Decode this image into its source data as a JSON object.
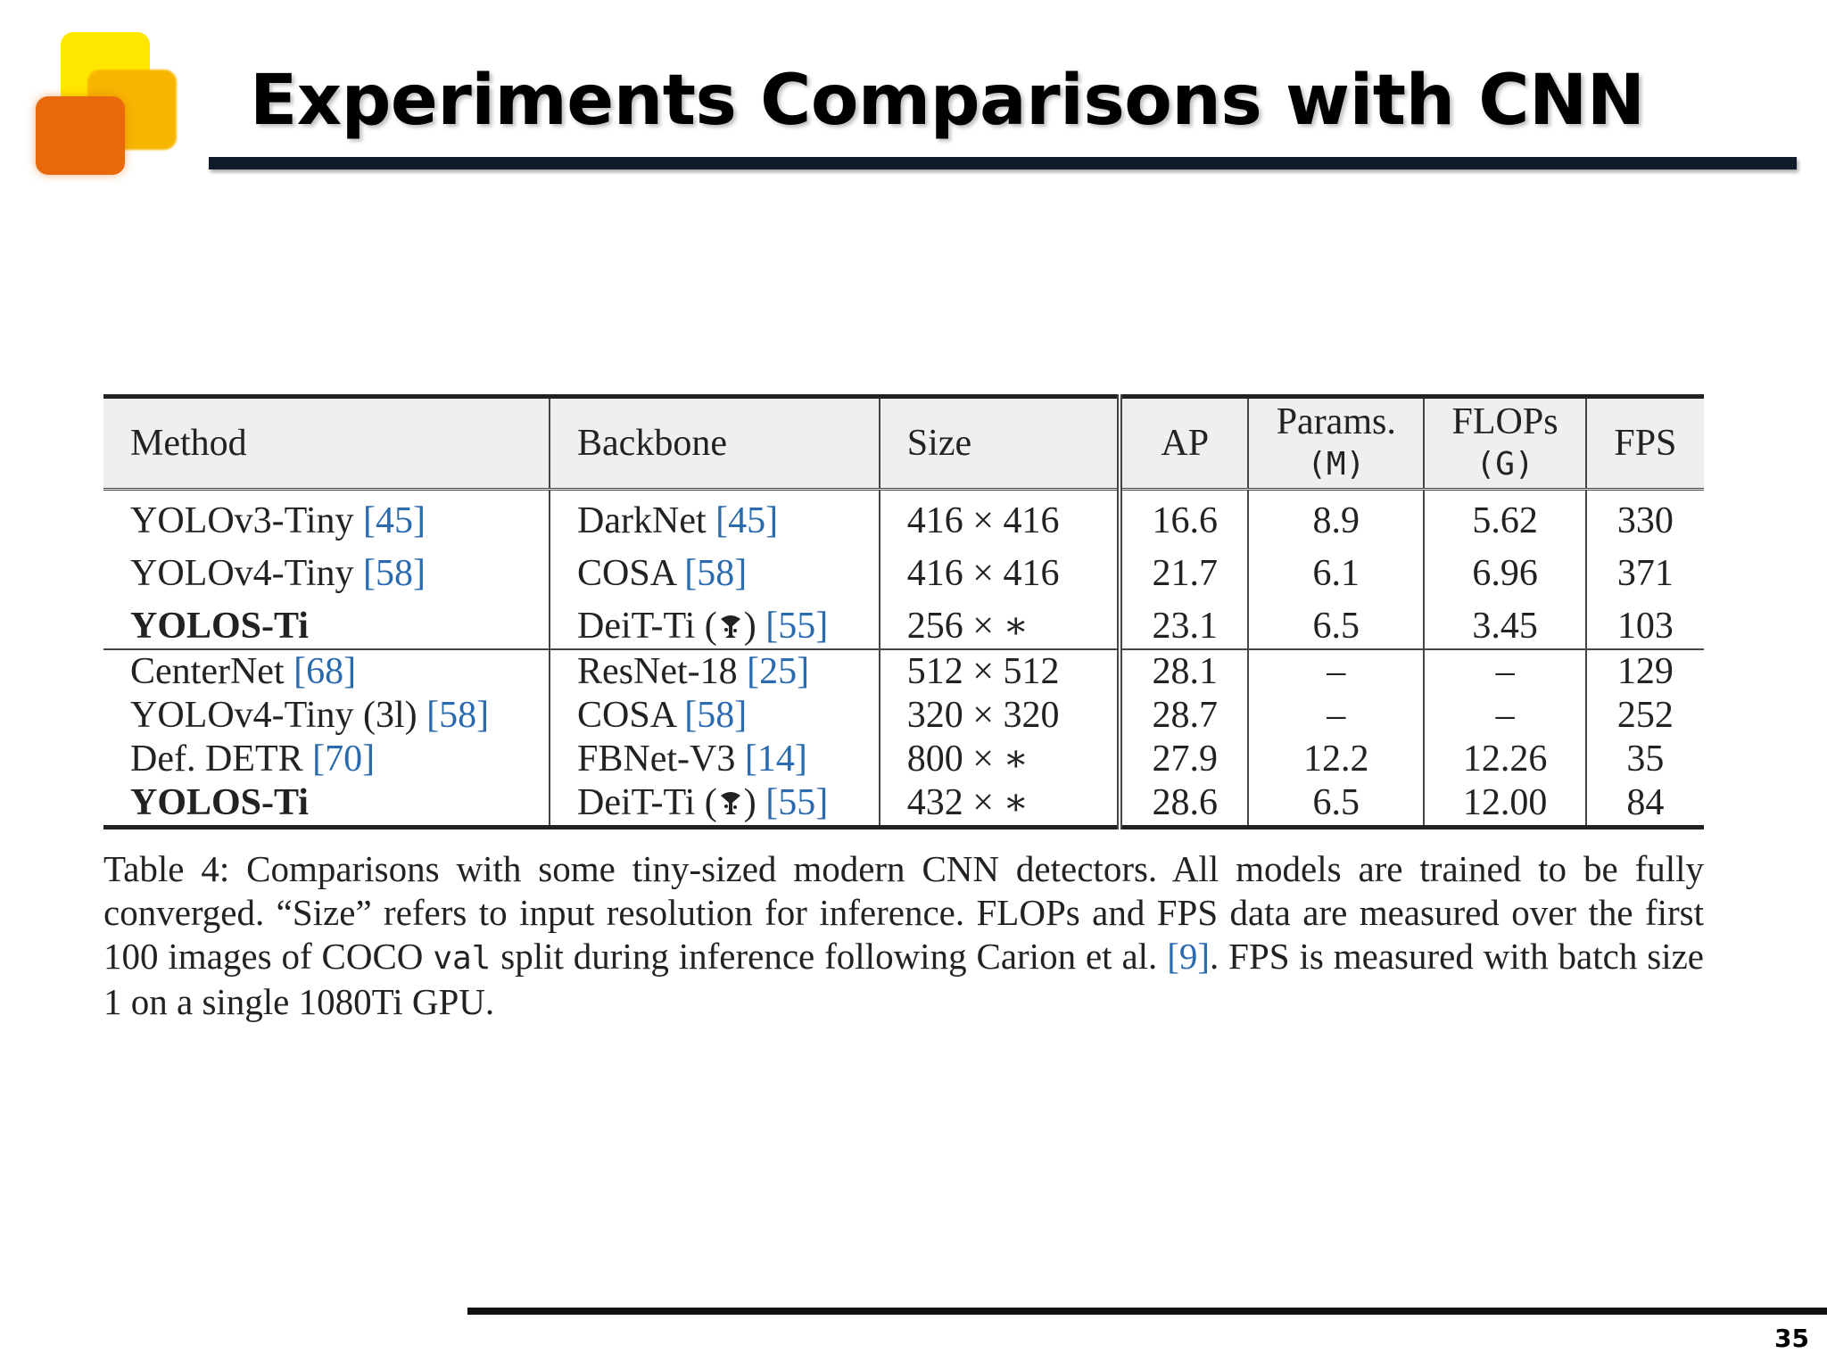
{
  "slide": {
    "title": "Experiments Comparisons with CNN",
    "page_number": "35"
  },
  "table": {
    "headers": {
      "method": "Method",
      "backbone": "Backbone",
      "size": "Size",
      "ap": "AP",
      "params_line1": "Params.",
      "params_line2": "(M)",
      "flops_line1": "FLOPs",
      "flops_line2": "(G)",
      "fps": "FPS"
    },
    "rows": [
      {
        "method": "YOLOv3-Tiny",
        "method_ref": "[45]",
        "backbone": "DarkNet",
        "backbone_ref": "[45]",
        "size": "416 × 416",
        "ap": "16.6",
        "params": "8.9",
        "flops": "5.62",
        "fps": "330"
      },
      {
        "method": "YOLOv4-Tiny",
        "method_ref": "[58]",
        "backbone": "COSA",
        "backbone_ref": "[58]",
        "size": "416 × 416",
        "ap": "21.7",
        "params": "6.1",
        "flops": "6.96",
        "fps": "371"
      },
      {
        "method": "YOLOS-Ti",
        "method_ref": "",
        "backbone": "DeiT-Ti (",
        "backbone_suffix": ")",
        "backbone_ref": "[55]",
        "size": "256 × ∗",
        "ap": "23.1",
        "params": "6.5",
        "flops": "3.45",
        "fps": "103"
      },
      {
        "method": "CenterNet",
        "method_ref": "[68]",
        "backbone": "ResNet-18",
        "backbone_ref": "[25]",
        "size": "512 × 512",
        "ap": "28.1",
        "params": "–",
        "flops": "–",
        "fps": "129"
      },
      {
        "method": "YOLOv4-Tiny (3l)",
        "method_ref": "[58]",
        "backbone": "COSA",
        "backbone_ref": "[58]",
        "size": "320 × 320",
        "ap": "28.7",
        "params": "–",
        "flops": "–",
        "fps": "252"
      },
      {
        "method": "Def. DETR",
        "method_ref": "[70]",
        "backbone": "FBNet-V3",
        "backbone_ref": "[14]",
        "size": "800 × ∗",
        "ap": "27.9",
        "params": "12.2",
        "flops": "12.26",
        "fps": "35"
      },
      {
        "method": "YOLOS-Ti",
        "method_ref": "",
        "backbone": "DeiT-Ti (",
        "backbone_suffix": ")",
        "backbone_ref": "[55]",
        "size": "432 × ∗",
        "ap": "28.6",
        "params": "6.5",
        "flops": "12.00",
        "fps": "84"
      }
    ]
  },
  "caption": {
    "part1": "Table 4: Comparisons with some tiny-sized modern CNN detectors. All models are trained to be fully converged. “Size” refers to input resolution for inference. FLOPs and FPS data are measured over the first 100 images of COCO ",
    "code": "val",
    "part2": " split during inference following Carion et al. ",
    "ref": "[9]",
    "part3": ". FPS is measured with batch size 1 on a single 1080Ti GPU."
  },
  "icons": {
    "logo": "stacked-squares-logo",
    "distillation": "alembic-icon"
  },
  "colors": {
    "logo_yellow": "#ffe800",
    "logo_amber": "#f7b500",
    "logo_orange": "#e8690b",
    "citation_blue": "#2a6bb0",
    "title_rule": "#0f1a2a"
  }
}
